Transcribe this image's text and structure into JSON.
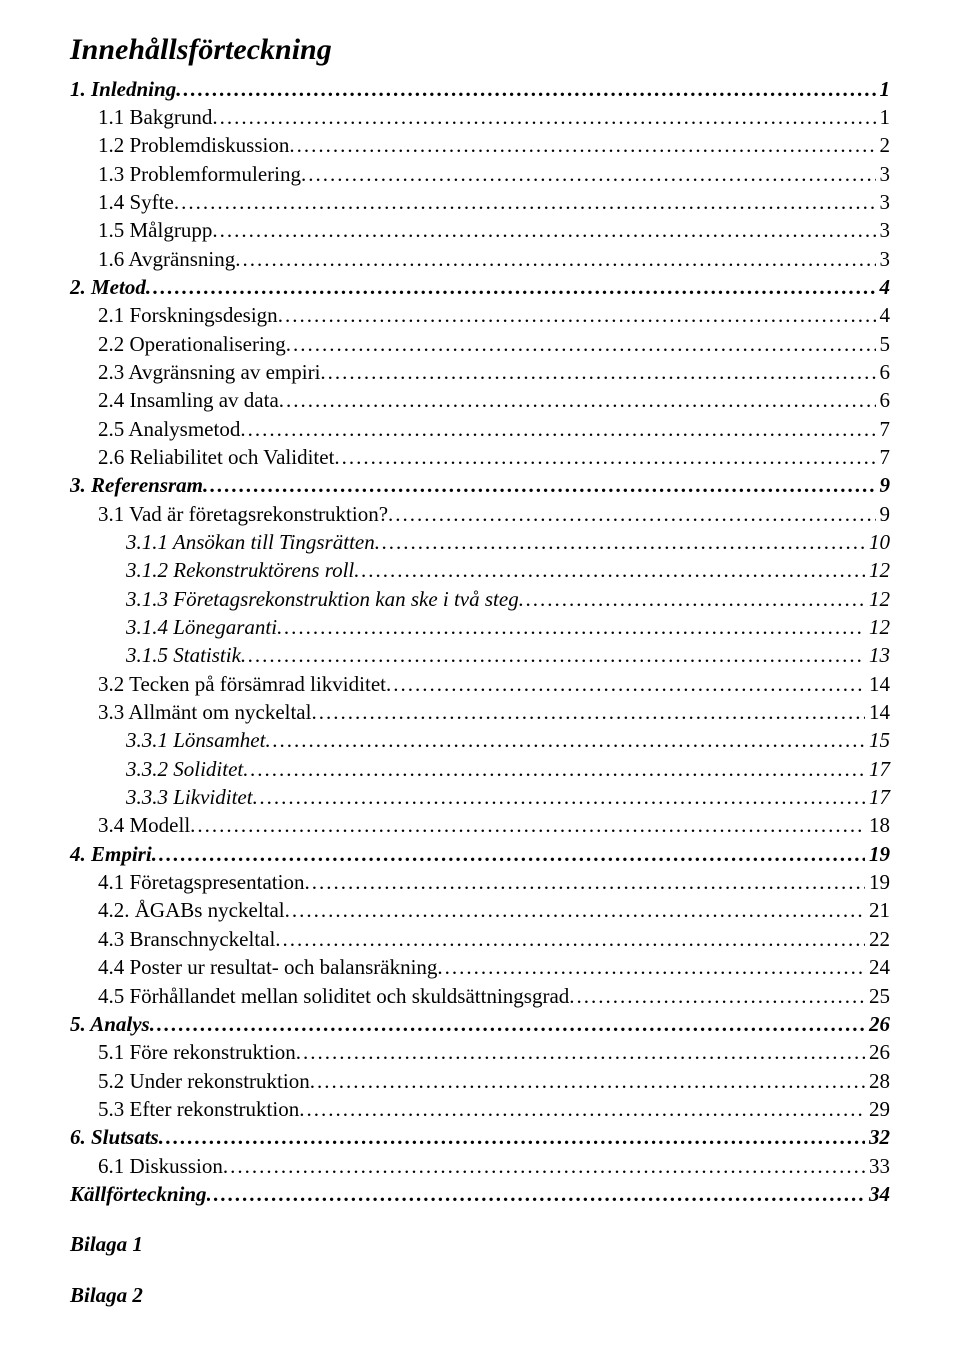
{
  "title": "Innehållsförteckning",
  "toc": [
    {
      "level": 1,
      "label": "1. Inledning",
      "page": "1"
    },
    {
      "level": 2,
      "label": "1.1 Bakgrund",
      "page": "1"
    },
    {
      "level": 2,
      "label": "1.2 Problemdiskussion",
      "page": "2"
    },
    {
      "level": 2,
      "label": "1.3 Problemformulering",
      "page": "3"
    },
    {
      "level": 2,
      "label": "1.4 Syfte",
      "page": "3"
    },
    {
      "level": 2,
      "label": "1.5 Målgrupp",
      "page": "3"
    },
    {
      "level": 2,
      "label": "1.6 Avgränsning",
      "page": "3"
    },
    {
      "level": 1,
      "label": "2. Metod",
      "page": "4"
    },
    {
      "level": 2,
      "label": "2.1 Forskningsdesign",
      "page": "4"
    },
    {
      "level": 2,
      "label": "2.2 Operationalisering",
      "page": "5"
    },
    {
      "level": 2,
      "label": "2.3 Avgränsning av empiri",
      "page": "6"
    },
    {
      "level": 2,
      "label": "2.4 Insamling av data",
      "page": "6"
    },
    {
      "level": 2,
      "label": "2.5 Analysmetod",
      "page": "7"
    },
    {
      "level": 2,
      "label": "2.6 Reliabilitet och Validitet",
      "page": "7"
    },
    {
      "level": 1,
      "label": "3. Referensram",
      "page": "9"
    },
    {
      "level": 2,
      "label": "3.1 Vad är företagsrekonstruktion?",
      "page": "9"
    },
    {
      "level": 3,
      "label": "3.1.1 Ansökan till Tingsrätten",
      "page": "10"
    },
    {
      "level": 3,
      "label": "3.1.2 Rekonstruktörens roll",
      "page": "12"
    },
    {
      "level": 3,
      "label": "3.1.3 Företagsrekonstruktion kan ske i två steg",
      "page": "12"
    },
    {
      "level": 3,
      "label": "3.1.4 Lönegaranti",
      "page": "12"
    },
    {
      "level": 3,
      "label": "3.1.5 Statistik",
      "page": "13"
    },
    {
      "level": 2,
      "label": "3.2 Tecken på försämrad likviditet",
      "page": "14"
    },
    {
      "level": 2,
      "label": "3.3 Allmänt om nyckeltal",
      "page": "14"
    },
    {
      "level": 3,
      "label": "3.3.1 Lönsamhet",
      "page": "15"
    },
    {
      "level": 3,
      "label": "3.3.2 Soliditet",
      "page": "17"
    },
    {
      "level": 3,
      "label": "3.3.3 Likviditet",
      "page": "17"
    },
    {
      "level": 2,
      "label": "3.4 Modell",
      "page": "18"
    },
    {
      "level": 1,
      "label": "4. Empiri",
      "page": "19"
    },
    {
      "level": 2,
      "label": "4.1 Företagspresentation",
      "page": "19"
    },
    {
      "level": 2,
      "label": "4.2. ÅGABs nyckeltal",
      "page": "21"
    },
    {
      "level": 2,
      "label": "4.3 Branschnyckeltal",
      "page": "22"
    },
    {
      "level": 2,
      "label": "4.4 Poster ur resultat- och balansräkning",
      "page": "24"
    },
    {
      "level": 2,
      "label": "4.5 Förhållandet mellan soliditet och skuldsättningsgrad",
      "page": "25"
    },
    {
      "level": 1,
      "label": "5. Analys",
      "page": "26"
    },
    {
      "level": 2,
      "label": "5.1 Före rekonstruktion",
      "page": "26"
    },
    {
      "level": 2,
      "label": "5.2 Under rekonstruktion",
      "page": "28"
    },
    {
      "level": 2,
      "label": "5.3 Efter rekonstruktion",
      "page": "29"
    },
    {
      "level": 1,
      "label": "6. Slutsats",
      "page": "32"
    },
    {
      "level": 2,
      "label": "6.1 Diskussion",
      "page": "33"
    },
    {
      "level": 1,
      "label": "Källförteckning",
      "page": "34"
    }
  ],
  "appendices": [
    "Bilaga 1",
    "Bilaga 2"
  ]
}
